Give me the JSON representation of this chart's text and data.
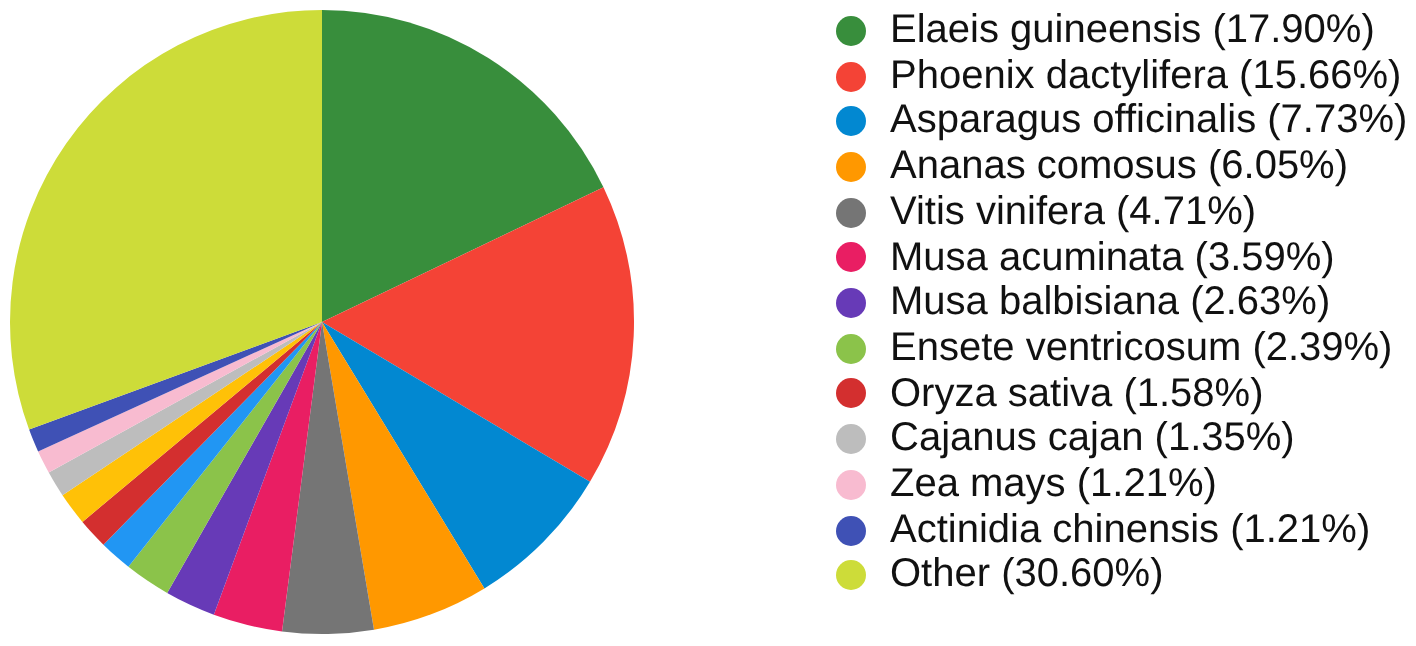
{
  "chart_data": {
    "type": "pie",
    "categories": [
      "Elaeis guineensis (17.90%)",
      "Phoenix dactylifera (15.66%)",
      "Asparagus officinalis (7.73%)",
      "Ananas comosus (6.05%)",
      "Vitis vinifera (4.71%)",
      "Musa acuminata (3.59%)",
      "Musa balbisiana (2.63%)",
      "Ensete ventricosum (2.39%)",
      null,
      "Oryza sativa (1.58%)",
      null,
      "Cajanus cajan (1.35%)",
      "Zea mays (1.21%)",
      "Actinidia chinensis (1.21%)",
      "Other (30.60%)"
    ],
    "values": [
      17.9,
      15.66,
      7.73,
      6.05,
      4.71,
      3.59,
      2.63,
      2.39,
      1.7,
      1.58,
      1.7,
      1.35,
      1.21,
      1.21,
      30.6
    ],
    "colors": [
      "#388e3c",
      "#f44336",
      "#0288d1",
      "#ff9800",
      "#757575",
      "#e91e63",
      "#673ab7",
      "#8bc34a",
      "#2196f3",
      "#d32f2f",
      "#ffc107",
      "#bdbdbd",
      "#f8bbd0",
      "#3f51b5",
      "#cddc39"
    ],
    "legend": "right"
  }
}
